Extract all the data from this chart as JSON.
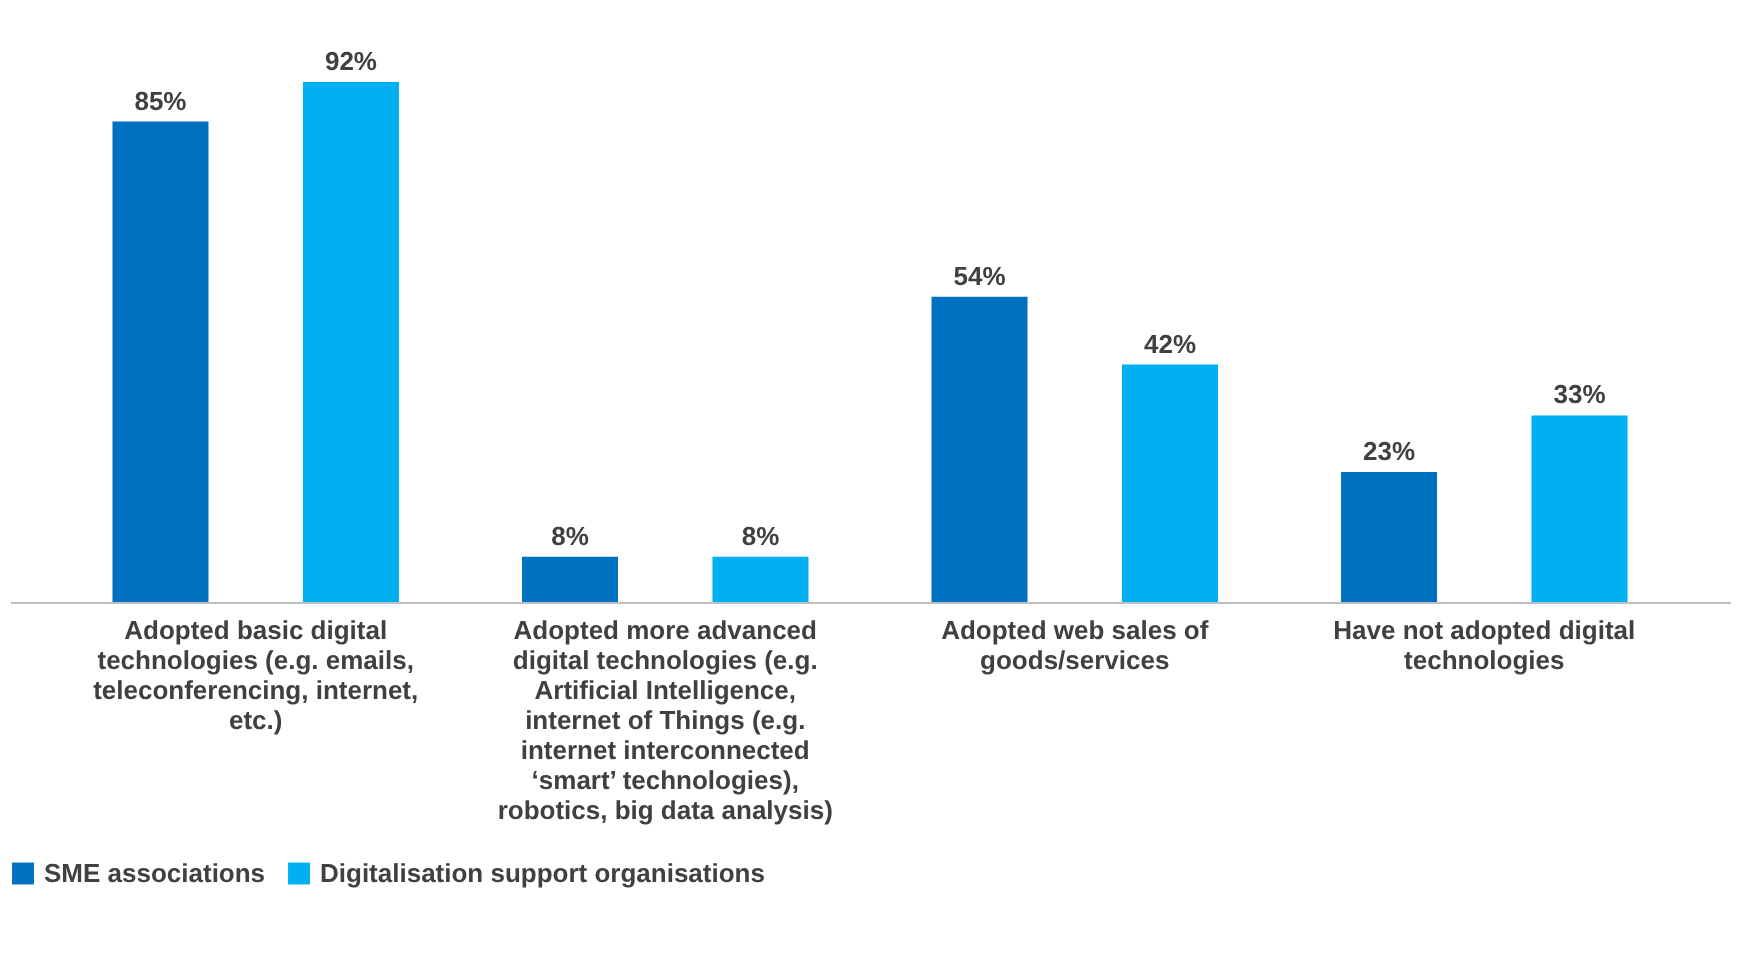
{
  "chart_data": {
    "type": "bar",
    "categories": [
      "Adopted basic digital technologies (e.g. emails, teleconferencing, internet, etc.)",
      "Adopted more advanced digital technologies (e.g. Artificial Intelligence, internet of Things (e.g. internet interconnected ‘smart’ technologies), robotics, big data analysis)",
      "Adopted web sales of goods/services",
      "Have not adopted digital technologies"
    ],
    "series": [
      {
        "name": "SME associations",
        "color": "#0070c0",
        "values": [
          85,
          8,
          54,
          23
        ],
        "value_labels": [
          "85%",
          "8%",
          "54%",
          "23%"
        ]
      },
      {
        "name": "Digitalisation support organisations",
        "color": "#00b0f0",
        "values": [
          92,
          8,
          42,
          33
        ],
        "value_labels": [
          "92%",
          "8%",
          "42%",
          "33%"
        ]
      }
    ],
    "legend": "bottom",
    "grid": false
  }
}
